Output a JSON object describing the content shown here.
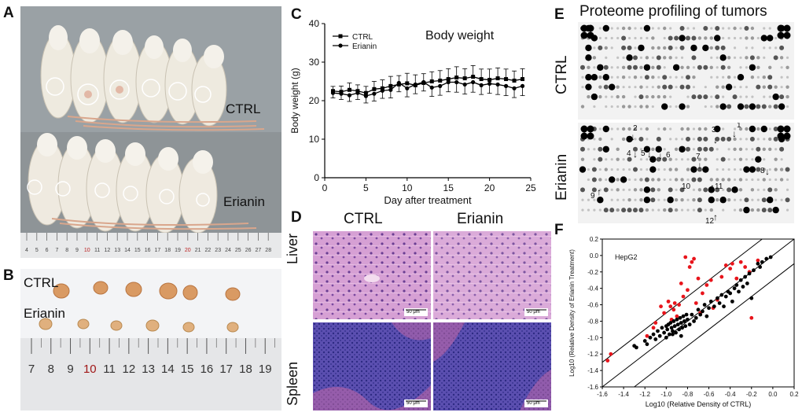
{
  "panels": {
    "a": {
      "letter": "A",
      "label_ctrl": "CTRL",
      "label_erianin": "Erianin",
      "ruler_ticks": [
        "4",
        "5",
        "6",
        "7",
        "8",
        "9",
        "10",
        "11",
        "12",
        "13",
        "14",
        "15",
        "16",
        "17",
        "18",
        "19",
        "20",
        "21",
        "22",
        "23",
        "24",
        "25",
        "26",
        "27",
        "28"
      ]
    },
    "b": {
      "letter": "B",
      "label_ctrl": "CTRL",
      "label_erianin": "Erianin",
      "ruler_ticks": [
        "7",
        "8",
        "9",
        "10",
        "11",
        "12",
        "13",
        "14",
        "15",
        "16",
        "17",
        "18",
        "19"
      ]
    },
    "c": {
      "letter": "C"
    },
    "d": {
      "letter": "D",
      "col_ctrl": "CTRL",
      "col_erianin": "Erianin",
      "row_liver": "Liver",
      "row_spleen": "Spleen",
      "scale": "50 μm"
    },
    "e": {
      "letter": "E",
      "title": "Proteome profiling of tumors",
      "row_ctrl": "CTRL",
      "row_erianin": "Erianin",
      "arrow_labels": [
        "1",
        "2",
        "3",
        "4",
        "5",
        "6",
        "7",
        "8",
        "9",
        "10",
        "11",
        "12"
      ]
    },
    "f": {
      "letter": "F"
    }
  },
  "colors": {
    "ctrl_series": "#000000",
    "erianin_series": "#000000",
    "red_points": "#e8141b",
    "black_points": "#000000",
    "he_pink": "#d59ad2",
    "spleen_blue": "#4a4aa8"
  },
  "chart_data": [
    {
      "id": "body-weight",
      "type": "line",
      "title": "Body weight",
      "xlabel": "Day after treatment",
      "ylabel": "Body weight (g)",
      "xlim": [
        0,
        25
      ],
      "ylim": [
        0,
        40
      ],
      "xticks": [
        0,
        5,
        10,
        15,
        20,
        25
      ],
      "yticks": [
        0,
        10,
        20,
        30,
        40
      ],
      "legend_position": "top-left",
      "series": [
        {
          "name": "CTRL",
          "marker": "square",
          "x": [
            1,
            2,
            3,
            4,
            5,
            6,
            7,
            8,
            9,
            10,
            11,
            12,
            13,
            14,
            15,
            16,
            17,
            18,
            19,
            20,
            21,
            22,
            23,
            24
          ],
          "y": [
            22.5,
            22.3,
            22.8,
            22.5,
            22.0,
            23.0,
            23.2,
            23.8,
            24.2,
            24.5,
            24.0,
            24.6,
            25.0,
            25.2,
            25.6,
            26.0,
            25.8,
            26.2,
            25.6,
            25.4,
            25.8,
            25.6,
            25.2,
            25.6
          ],
          "err": [
            1.2,
            1.5,
            1.8,
            1.6,
            1.7,
            2.0,
            2.2,
            2.5,
            2.3,
            2.6,
            2.7,
            2.4,
            2.5,
            2.6,
            2.7,
            2.8,
            2.5,
            2.9,
            2.6,
            2.8,
            2.7,
            2.6,
            2.5,
            2.7
          ]
        },
        {
          "name": "Erianin",
          "marker": "circle",
          "x": [
            1,
            2,
            3,
            4,
            5,
            6,
            7,
            8,
            9,
            10,
            11,
            12,
            13,
            14,
            15,
            16,
            17,
            18,
            19,
            20,
            21,
            22,
            23,
            24
          ],
          "y": [
            22.0,
            21.8,
            21.4,
            22.0,
            21.2,
            21.8,
            22.6,
            22.8,
            24.6,
            23.2,
            24.2,
            24.8,
            23.4,
            23.8,
            24.8,
            24.8,
            24.2,
            24.8,
            24.0,
            24.4,
            24.2,
            23.8,
            23.2,
            23.8
          ],
          "err": [
            1.3,
            1.5,
            1.6,
            1.7,
            1.8,
            1.9,
            2.0,
            2.1,
            2.3,
            2.2,
            2.4,
            2.3,
            2.3,
            2.4,
            2.5,
            2.6,
            2.5,
            2.6,
            2.4,
            2.5,
            2.6,
            2.5,
            2.4,
            2.5
          ]
        }
      ]
    },
    {
      "id": "density-scatter",
      "type": "scatter",
      "title": "HepG2",
      "xlabel": "Log10 (Relative Density of CTRL)",
      "ylabel": "Log10 (Relative Density of Erianin Treatment)",
      "xlim": [
        -1.6,
        0.2
      ],
      "ylim": [
        -1.6,
        0.2
      ],
      "xticks": [
        "-1.6",
        "-1.4",
        "-1.2",
        "-1.0",
        "-0.8",
        "-0.6",
        "-0.4",
        "-0.2",
        "0.0",
        "0.2"
      ],
      "yticks": [
        "0.2",
        "0.0",
        "-0.2",
        "-0.4",
        "-0.6",
        "-0.8",
        "-1.0",
        "-1.2",
        "-1.4",
        "-1.6"
      ],
      "reference_lines": [
        {
          "name": "upper",
          "intercept": 0.3
        },
        {
          "name": "identity",
          "intercept": 0.0
        },
        {
          "name": "lower",
          "intercept": -0.3
        }
      ],
      "series": [
        {
          "name": "red",
          "color": "#e8141b",
          "points": [
            [
              -1.55,
              -1.28
            ],
            [
              -1.52,
              -1.2
            ],
            [
              -1.18,
              -0.98
            ],
            [
              -1.12,
              -0.88
            ],
            [
              -1.1,
              -0.82
            ],
            [
              -1.05,
              -0.62
            ],
            [
              -1.02,
              -0.7
            ],
            [
              -0.98,
              -0.56
            ],
            [
              -0.96,
              -0.62
            ],
            [
              -0.95,
              -0.78
            ],
            [
              -0.93,
              -0.66
            ],
            [
              -0.92,
              -0.58
            ],
            [
              -0.9,
              -0.74
            ],
            [
              -0.88,
              -0.6
            ],
            [
              -0.86,
              -0.34
            ],
            [
              -0.84,
              -0.5
            ],
            [
              -0.82,
              -0.02
            ],
            [
              -0.8,
              -0.42
            ],
            [
              -0.78,
              -0.14
            ],
            [
              -0.76,
              -0.08
            ],
            [
              -0.74,
              -0.04
            ],
            [
              -0.72,
              -0.58
            ],
            [
              -0.7,
              -0.28
            ],
            [
              -0.68,
              -0.7
            ],
            [
              -0.66,
              -0.46
            ],
            [
              -0.62,
              -0.36
            ],
            [
              -0.58,
              -0.3
            ],
            [
              -0.56,
              -0.64
            ],
            [
              -0.52,
              -0.54
            ],
            [
              -0.48,
              -0.26
            ],
            [
              -0.44,
              -0.12
            ],
            [
              -0.4,
              -0.16
            ],
            [
              -0.38,
              -0.1
            ],
            [
              -0.34,
              -0.28
            ],
            [
              -0.3,
              -0.08
            ],
            [
              -0.26,
              -0.14
            ],
            [
              -0.22,
              -0.2
            ],
            [
              -0.2,
              -0.76
            ],
            [
              -0.14,
              -0.06
            ]
          ]
        },
        {
          "name": "black",
          "color": "#000000",
          "points": [
            [
              -1.3,
              -1.1
            ],
            [
              -1.28,
              -1.12
            ],
            [
              -1.2,
              -1.04
            ],
            [
              -1.18,
              -1.08
            ],
            [
              -1.15,
              -1.0
            ],
            [
              -1.12,
              -0.96
            ],
            [
              -1.1,
              -1.02
            ],
            [
              -1.08,
              -0.92
            ],
            [
              -1.06,
              -0.98
            ],
            [
              -1.04,
              -0.88
            ],
            [
              -1.02,
              -0.94
            ],
            [
              -1.0,
              -0.86
            ],
            [
              -0.99,
              -0.9
            ],
            [
              -0.98,
              -0.84
            ],
            [
              -0.97,
              -0.96
            ],
            [
              -0.96,
              -0.82
            ],
            [
              -0.95,
              -0.88
            ],
            [
              -0.94,
              -0.92
            ],
            [
              -0.93,
              -0.8
            ],
            [
              -0.92,
              -0.86
            ],
            [
              -0.91,
              -0.94
            ],
            [
              -0.9,
              -0.78
            ],
            [
              -0.89,
              -0.84
            ],
            [
              -0.88,
              -0.9
            ],
            [
              -0.87,
              -0.76
            ],
            [
              -0.86,
              -0.82
            ],
            [
              -0.85,
              -0.88
            ],
            [
              -0.84,
              -0.74
            ],
            [
              -0.83,
              -0.8
            ],
            [
              -0.82,
              -0.86
            ],
            [
              -0.81,
              -0.72
            ],
            [
              -0.8,
              -0.78
            ],
            [
              -0.78,
              -0.84
            ],
            [
              -0.76,
              -0.72
            ],
            [
              -0.74,
              -0.8
            ],
            [
              -0.72,
              -0.76
            ],
            [
              -0.7,
              -0.66
            ],
            [
              -0.68,
              -0.72
            ],
            [
              -0.66,
              -0.68
            ],
            [
              -0.64,
              -0.6
            ],
            [
              -0.62,
              -0.74
            ],
            [
              -0.6,
              -0.64
            ],
            [
              -0.58,
              -0.56
            ],
            [
              -0.55,
              -0.62
            ],
            [
              -0.52,
              -0.52
            ],
            [
              -0.5,
              -0.58
            ],
            [
              -0.48,
              -0.48
            ],
            [
              -0.46,
              -0.62
            ],
            [
              -0.44,
              -0.5
            ],
            [
              -0.42,
              -0.44
            ],
            [
              -0.4,
              -0.46
            ],
            [
              -0.38,
              -0.56
            ],
            [
              -0.36,
              -0.4
            ],
            [
              -0.34,
              -0.36
            ],
            [
              -0.32,
              -0.44
            ],
            [
              -0.3,
              -0.3
            ],
            [
              -0.28,
              -0.38
            ],
            [
              -0.26,
              -0.26
            ],
            [
              -0.24,
              -0.34
            ],
            [
              -0.22,
              -0.22
            ],
            [
              -0.2,
              -0.52
            ],
            [
              -0.18,
              -0.18
            ],
            [
              -0.14,
              -0.1
            ],
            [
              -0.12,
              -0.14
            ],
            [
              -0.1,
              -0.08
            ],
            [
              -0.06,
              -0.04
            ],
            [
              -0.02,
              -0.02
            ],
            [
              -1.0,
              -1.0
            ],
            [
              -0.94,
              -0.96
            ],
            [
              -0.86,
              -0.98
            ]
          ]
        }
      ]
    }
  ]
}
